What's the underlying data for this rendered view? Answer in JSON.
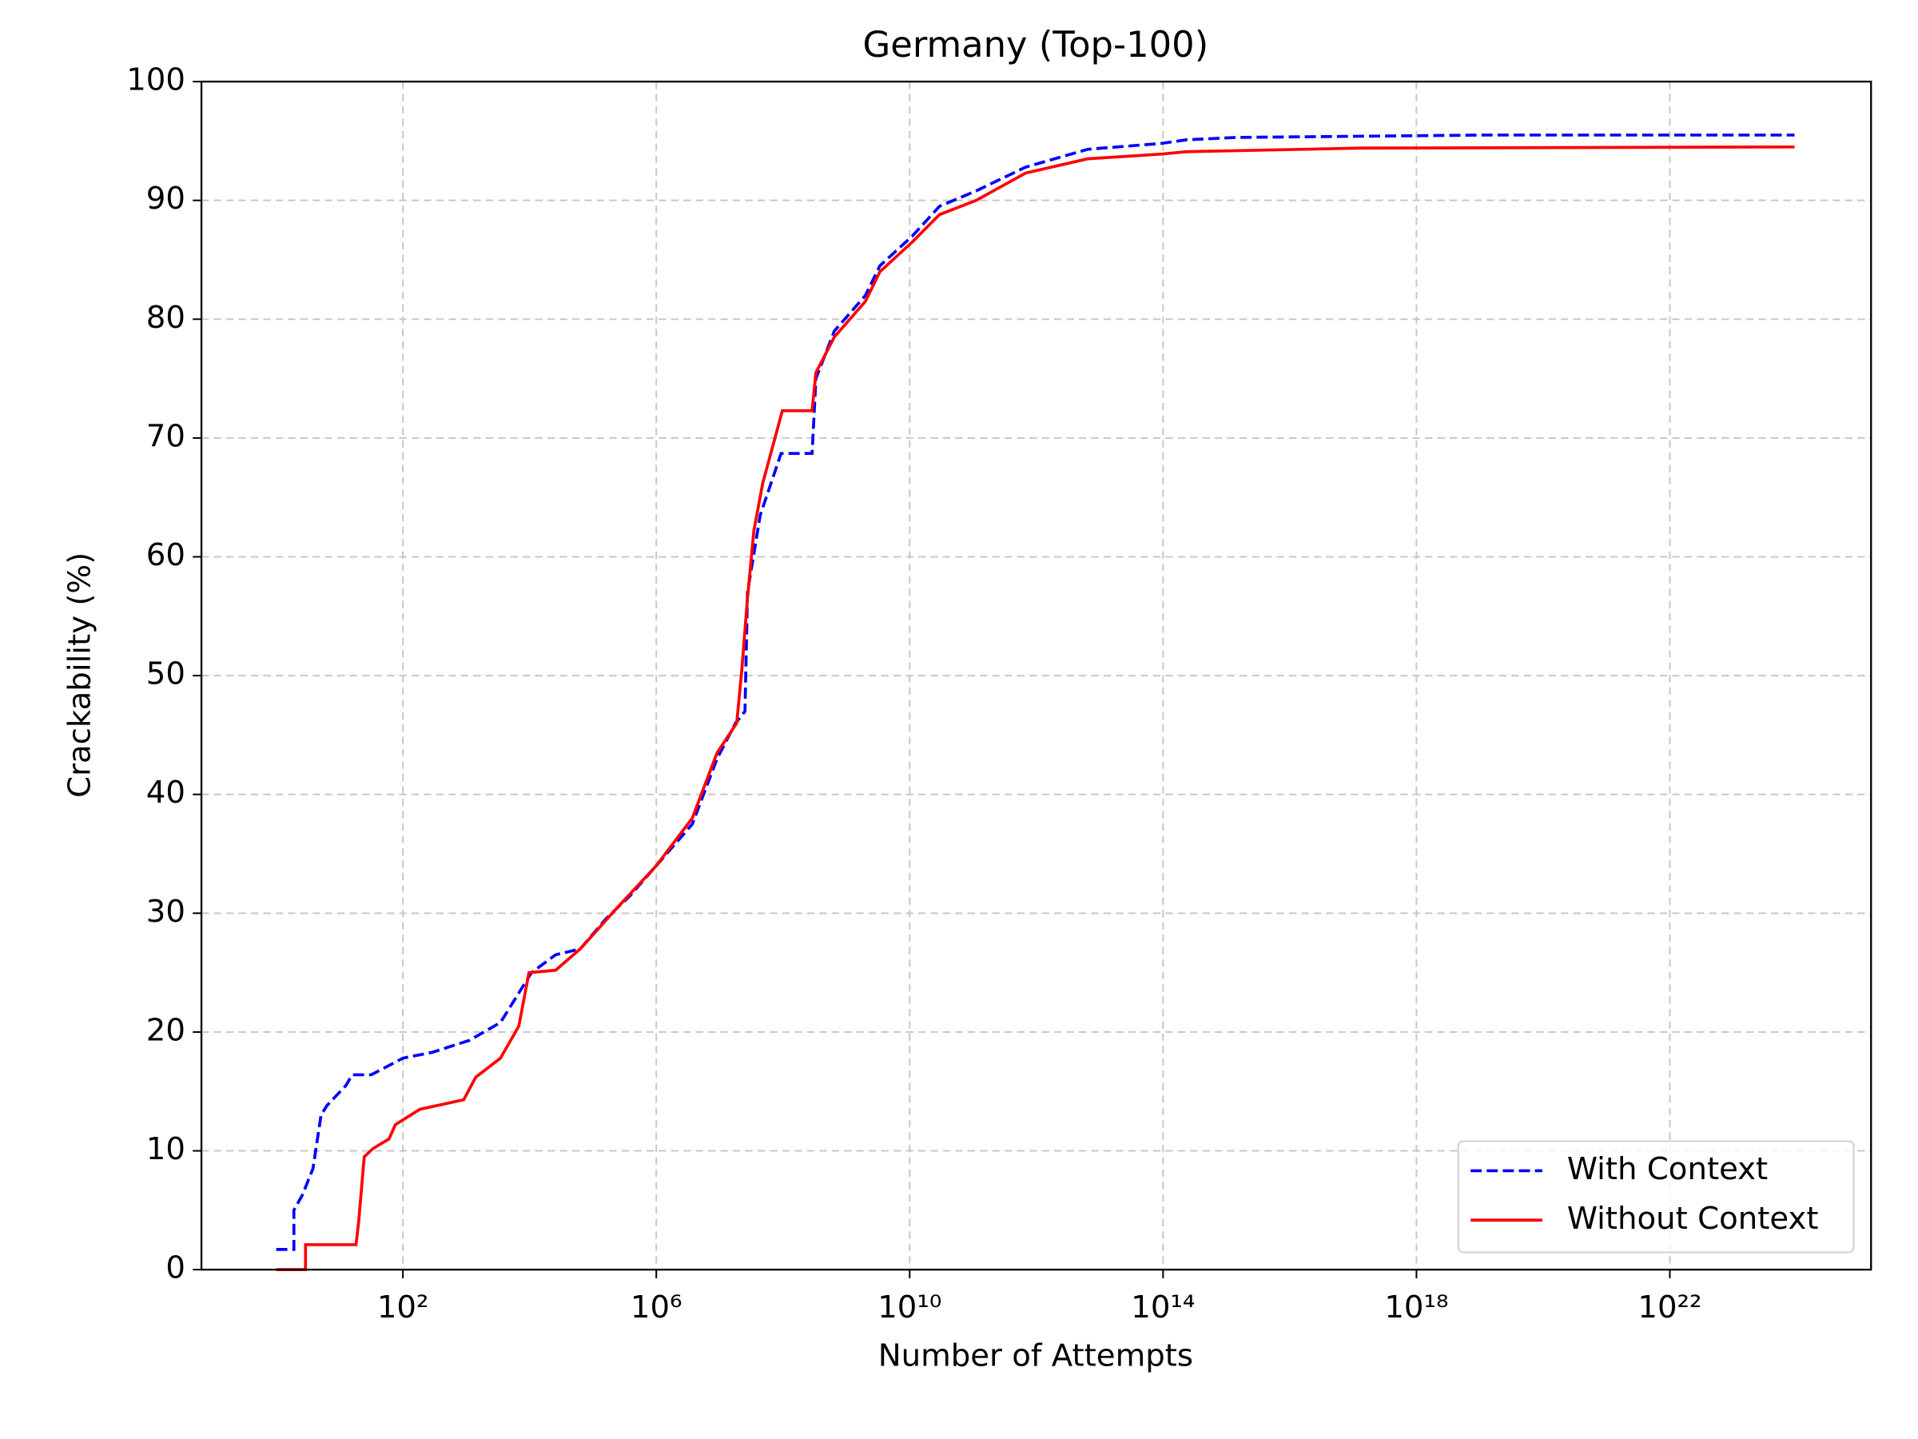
{
  "chart_data": {
    "type": "line",
    "title": "Germany (Top-100)",
    "x_label": "Number of Attempts",
    "y_label": "Crackability (%)",
    "xscale": "log",
    "grid": true,
    "legend": "lower right",
    "xlim": [
      0.066,
      1.5e+25
    ],
    "ylim": [
      0,
      100
    ],
    "xticks": [
      {
        "value": 100,
        "label": "10²"
      },
      {
        "value": 1000000.0,
        "label": "10⁶"
      },
      {
        "value": 10000000000.0,
        "label": "10¹⁰"
      },
      {
        "value": 100000000000000.0,
        "label": "10¹⁴"
      },
      {
        "value": 1e+18,
        "label": "10¹⁸"
      },
      {
        "value": 1e+22,
        "label": "10²²"
      }
    ],
    "yticks": [
      0,
      10,
      20,
      30,
      40,
      50,
      60,
      70,
      80,
      90,
      100
    ],
    "series": [
      {
        "name": "With Context",
        "color": "#0000ff",
        "dash": "dashed",
        "x": [
          1,
          1.9,
          1.9,
          2.6,
          3.8,
          5.1,
          6.3,
          12.6,
          15.8,
          31.6,
          100,
          295,
          1122,
          3467,
          10715,
          25704,
          63096,
          158489,
          389045,
          1000000.0,
          3700000.0,
          9100000.0,
          17800000.0,
          25100000.0,
          27500000.0,
          43700000.0,
          93300000.0,
          288000000.0,
          331000000.0,
          646000000.0,
          2000000000.0,
          3390000000.0,
          11000000000.0,
          29500000000.0,
          112000000000.0,
          676000000000.0,
          6460000000000.0,
          95500000000000.0,
          234000000000000.0,
          1410000000000000.0,
          1.26e+17,
          1.12e+19,
          9.3e+23
        ],
        "values": [
          1.7,
          1.7,
          5,
          6.3,
          8.5,
          13,
          13.8,
          15.5,
          16.4,
          16.4,
          17.8,
          18.3,
          19.3,
          20.8,
          25,
          26.5,
          27,
          29.5,
          31.5,
          34,
          37.5,
          43,
          46,
          47,
          57,
          63.5,
          68.7,
          68.7,
          75,
          79,
          82,
          84.5,
          87,
          89.5,
          90.8,
          92.8,
          94.3,
          94.8,
          95.1,
          95.3,
          95.4,
          95.5,
          95.5
        ]
      },
      {
        "name": "Without Context",
        "color": "#ff0000",
        "dash": "solid",
        "x": [
          1,
          2.9,
          2.9,
          18.2,
          20,
          24.5,
          33.9,
          60.3,
          75.9,
          186,
          912,
          1413,
          3467,
          6761,
          9772,
          25704,
          63096,
          245471,
          1000000.0,
          3700000.0,
          9100000.0,
          18600000.0,
          22400000.0,
          27500000.0,
          34700000.0,
          47900000.0,
          97700000.0,
          288000000.0,
          331000000.0,
          646000000.0,
          2000000000.0,
          3390000000.0,
          11000000000.0,
          29500000000.0,
          112000000000.0,
          676000000000.0,
          6460000000000.0,
          95500000000000.0,
          234000000000000.0,
          1.26e+17,
          9.3e+23
        ],
        "values": [
          0,
          0,
          2.1,
          2.1,
          4,
          9.5,
          10.2,
          11,
          12.2,
          13.5,
          14.3,
          16.2,
          17.8,
          20.5,
          25,
          25.2,
          27,
          30.5,
          34,
          38,
          43.5,
          46,
          50.5,
          56.5,
          62.2,
          66.2,
          72.3,
          72.3,
          75.5,
          78.5,
          81.5,
          84,
          86.5,
          88.8,
          90,
          92.3,
          93.5,
          93.9,
          94.1,
          94.4,
          94.5
        ]
      }
    ]
  }
}
